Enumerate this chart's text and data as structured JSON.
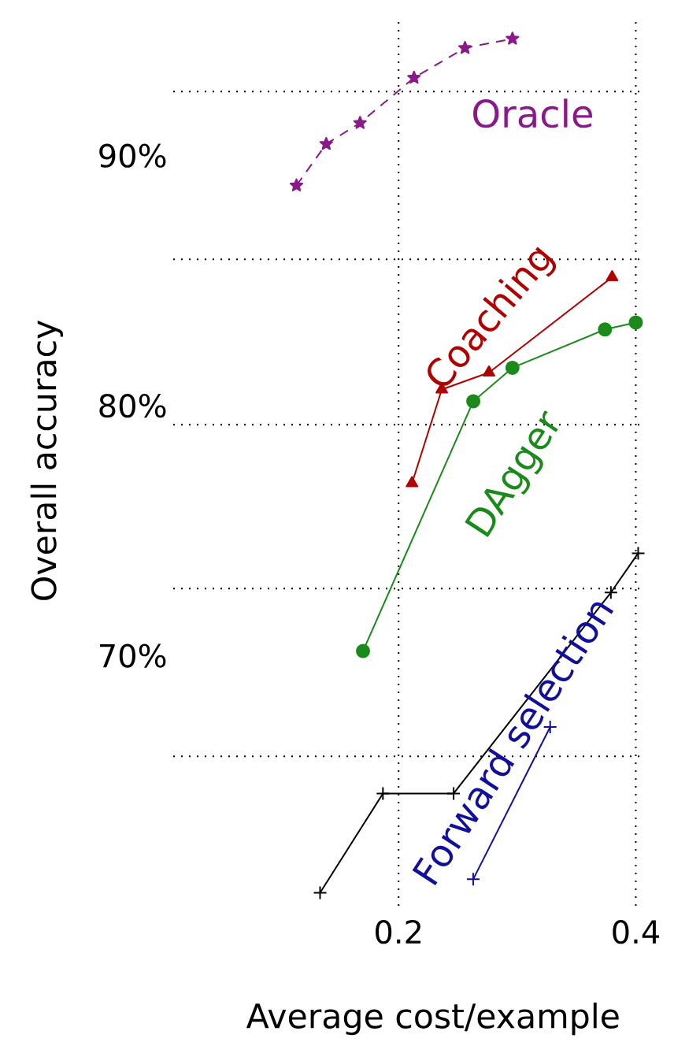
{
  "chart_data": {
    "type": "line",
    "xlabel": "Average cost/example",
    "ylabel": "Overall accuracy",
    "xlim": [
      0.01,
      0.405
    ],
    "ylim": [
      60,
      95.6
    ],
    "xticks": [
      0.2,
      0.4
    ],
    "yticks": [
      {
        "value": 65.98,
        "label": null
      },
      {
        "value": 70,
        "label": "70%"
      },
      {
        "value": 72.69,
        "label": null
      },
      {
        "value": 79.24,
        "label": null
      },
      {
        "value": 80,
        "label": "80%"
      },
      {
        "value": 85.86,
        "label": null
      },
      {
        "value": 90,
        "label": "90%"
      },
      {
        "value": 92.57,
        "label": null
      }
    ],
    "grid": true,
    "series": [
      {
        "name": "Oracle",
        "color": "#8a1a8a",
        "marker": "star",
        "line_style": "dashed",
        "x": [
          0.1139,
          0.139,
          0.1675,
          0.213,
          0.256,
          0.296
        ],
        "values": [
          88.81,
          90.47,
          91.31,
          93.12,
          94.31,
          94.68
        ]
      },
      {
        "name": "Coaching",
        "color": "#b00000",
        "marker": "triangle",
        "line_style": "solid",
        "x": [
          0.2113,
          0.2364,
          0.2762,
          0.38
        ],
        "values": [
          76.9,
          80.65,
          81.33,
          85.14
        ]
      },
      {
        "name": "DAgger",
        "color": "#1a8a1a",
        "marker": "circle",
        "line_style": "solid",
        "x": [
          0.17,
          0.263,
          0.296,
          0.374,
          0.4
        ],
        "values": [
          70.19,
          80.18,
          81.52,
          83.05,
          83.33
        ]
      },
      {
        "color": "#000000",
        "marker": "cross",
        "line_style": "solid",
        "x": [
          0.1338,
          0.1868,
          0.2464,
          0.379,
          0.402
        ],
        "values": [
          60.52,
          64.49,
          64.49,
          72.53,
          74.1
        ]
      },
      {
        "name": "Forward selection",
        "color": "#10109a",
        "marker": "cross",
        "line_style": "solid",
        "x": [
          0.2629,
          0.3278
        ],
        "values": [
          61.06,
          67.15
        ]
      }
    ]
  }
}
